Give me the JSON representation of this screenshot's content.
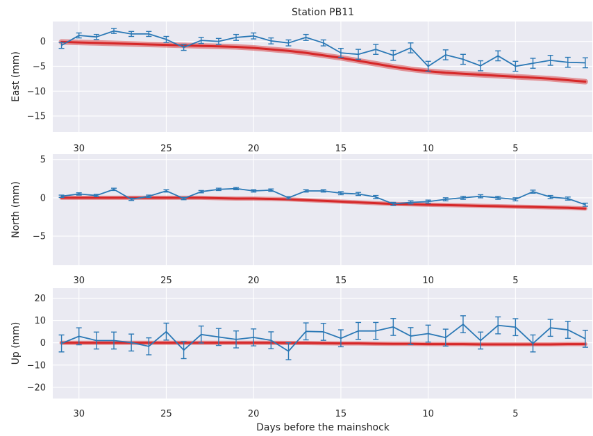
{
  "chart_data": {
    "type": "line",
    "title": "Station PB11",
    "xlabel": "Days before the mainshock",
    "x_direction": "reversed",
    "xlim": [
      31.5,
      0.6
    ],
    "xticks": [
      30,
      25,
      20,
      15,
      10,
      5
    ],
    "x": [
      31,
      30,
      29,
      28,
      27,
      26,
      25,
      24,
      23,
      22,
      21,
      20,
      19,
      18,
      17,
      16,
      15,
      14,
      13,
      12,
      11,
      10,
      9,
      8,
      7,
      6,
      5,
      4,
      3,
      2,
      1
    ],
    "colors": {
      "observed": "#2a78b5",
      "model": "#d62728"
    },
    "panels": [
      {
        "ylabel": "East (mm)",
        "ylim": [
          -18.2,
          4.0
        ],
        "yticks": [
          0,
          -5,
          -10,
          -15
        ],
        "series": [
          {
            "kind": "errorbar",
            "values": [
              -0.8,
              1.2,
              0.9,
              2.1,
              1.5,
              1.5,
              0.4,
              -1.2,
              0.2,
              0.0,
              0.8,
              1.1,
              0.1,
              -0.3,
              0.8,
              -0.3,
              -2.3,
              -2.6,
              -1.6,
              -2.8,
              -1.3,
              -5.0,
              -2.7,
              -3.6,
              -4.9,
              -2.9,
              -5.0,
              -4.4,
              -3.8,
              -4.2,
              -4.3
            ],
            "errors": [
              0.6,
              0.5,
              0.5,
              0.5,
              0.5,
              0.5,
              0.6,
              0.6,
              0.6,
              0.6,
              0.6,
              0.6,
              0.6,
              0.6,
              0.6,
              0.6,
              0.9,
              1.0,
              1.0,
              1.0,
              1.0,
              1.0,
              1.0,
              1.0,
              1.0,
              1.0,
              1.0,
              1.0,
              1.0,
              1.0,
              1.0
            ]
          },
          {
            "kind": "model",
            "values": [
              -0.1,
              -0.2,
              -0.3,
              -0.4,
              -0.5,
              -0.6,
              -0.7,
              -0.8,
              -0.9,
              -1.0,
              -1.1,
              -1.3,
              -1.6,
              -1.9,
              -2.3,
              -2.8,
              -3.3,
              -3.9,
              -4.5,
              -5.1,
              -5.6,
              -6.0,
              -6.3,
              -6.5,
              -6.7,
              -6.9,
              -7.1,
              -7.3,
              -7.5,
              -7.8,
              -8.1
            ]
          }
        ]
      },
      {
        "ylabel": "North (mm)",
        "ylim": [
          -8.8,
          5.7
        ],
        "yticks": [
          5,
          0,
          -5
        ],
        "series": [
          {
            "kind": "errorbar",
            "values": [
              0.2,
              0.5,
              0.3,
              1.1,
              -0.2,
              0.2,
              0.9,
              -0.1,
              0.8,
              1.1,
              1.2,
              0.9,
              1.0,
              0.0,
              0.9,
              0.9,
              0.6,
              0.5,
              0.1,
              -0.8,
              -0.6,
              -0.5,
              -0.2,
              0.0,
              0.2,
              0.0,
              -0.2,
              0.8,
              0.1,
              -0.1,
              -0.9
            ],
            "errors": [
              0.15,
              0.15,
              0.15,
              0.15,
              0.15,
              0.15,
              0.15,
              0.15,
              0.15,
              0.15,
              0.15,
              0.15,
              0.15,
              0.15,
              0.15,
              0.15,
              0.2,
              0.2,
              0.2,
              0.2,
              0.2,
              0.2,
              0.2,
              0.2,
              0.2,
              0.2,
              0.2,
              0.2,
              0.2,
              0.2,
              0.2
            ]
          },
          {
            "kind": "model",
            "values": [
              0.0,
              0.0,
              0.0,
              0.0,
              0.0,
              0.0,
              0.0,
              0.0,
              0.0,
              -0.05,
              -0.1,
              -0.1,
              -0.15,
              -0.2,
              -0.3,
              -0.4,
              -0.5,
              -0.6,
              -0.7,
              -0.8,
              -0.85,
              -0.9,
              -0.95,
              -1.0,
              -1.05,
              -1.1,
              -1.15,
              -1.2,
              -1.25,
              -1.3,
              -1.4
            ]
          }
        ]
      },
      {
        "ylabel": "Up (mm)",
        "ylim": [
          -25,
          24.5
        ],
        "yticks": [
          20,
          10,
          0,
          -10,
          -20
        ],
        "series": [
          {
            "kind": "errorbar",
            "values": [
              -0.3,
              2.9,
              1.0,
              1.0,
              0.1,
              -1.6,
              5.0,
              -3.3,
              3.7,
              2.6,
              1.5,
              2.4,
              1.1,
              -3.8,
              5.1,
              4.9,
              2.0,
              5.3,
              5.3,
              7.1,
              3.0,
              4.1,
              2.3,
              8.3,
              1.0,
              7.8,
              7.0,
              -0.3,
              6.7,
              5.8,
              1.8
            ],
            "errors": [
              3.8,
              3.8,
              3.8,
              3.8,
              3.8,
              3.8,
              3.8,
              3.8,
              3.8,
              3.8,
              3.8,
              3.8,
              3.8,
              3.8,
              3.8,
              3.8,
              3.8,
              3.8,
              3.8,
              3.8,
              3.8,
              3.8,
              3.8,
              3.8,
              3.8,
              3.8,
              3.8,
              3.8,
              3.8,
              3.8,
              3.8
            ]
          },
          {
            "kind": "model",
            "values": [
              0.0,
              0.0,
              0.0,
              0.0,
              0.0,
              0.0,
              0.0,
              0.0,
              0.0,
              0.0,
              0.0,
              0.0,
              0.0,
              -0.1,
              -0.1,
              -0.2,
              -0.3,
              -0.3,
              -0.4,
              -0.5,
              -0.5,
              -0.6,
              -0.6,
              -0.6,
              -0.7,
              -0.7,
              -0.7,
              -0.7,
              -0.7,
              -0.6,
              -0.6
            ]
          }
        ]
      }
    ]
  }
}
